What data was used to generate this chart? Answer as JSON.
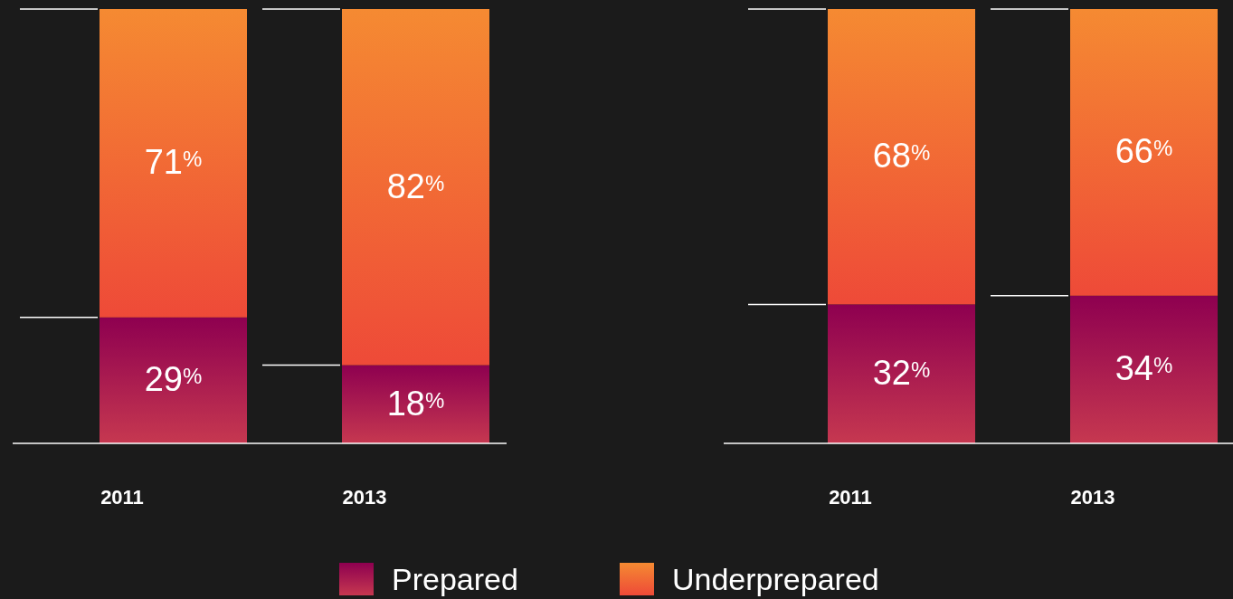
{
  "chart_data": [
    {
      "type": "bar",
      "stacked": true,
      "categories": [
        "2011",
        "2013"
      ],
      "legend": "bottom",
      "series": [
        {
          "name": "Prepared",
          "color": "#8e0050",
          "values": [
            29,
            18
          ],
          "value_labels": [
            "29$^{%}$",
            "18$^{%}$"
          ]
        },
        {
          "name": "Underprepared",
          "color": "#ee4a38",
          "values": [
            71,
            82
          ],
          "value_labels": [
            "71$^{%}$",
            "82$^{%}$"
          ]
        }
      ]
    },
    {
      "type": "bar",
      "stacked": true,
      "categories": [
        "2011",
        "2013"
      ],
      "series": [
        {
          "color": "#8e0050",
          "values": [
            32,
            34
          ],
          "value_labels": [
            "32$^{%}$",
            "34$^{%}$"
          ]
        },
        {
          "color": "#ee4a38",
          "values": [
            68,
            66
          ],
          "value_labels": [
            "68$^{%}$",
            "66$^{%}$"
          ]
        }
      ]
    }
  ]
}
